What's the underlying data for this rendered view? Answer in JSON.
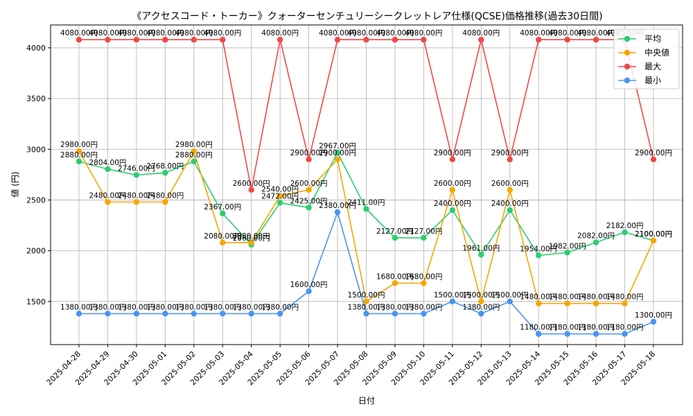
{
  "chart_data": {
    "type": "line",
    "title": "《アクセスコード・トーカー》クォーターセンチュリーシークレットレア仕様(QCSE)価格推移(過去30日間)",
    "xlabel": "日付",
    "ylabel": "値 (円)",
    "ylim": [
      1075,
      4225
    ],
    "yticks": [
      1500,
      2000,
      2500,
      3000,
      3500,
      4000
    ],
    "grid": true,
    "legend_position": "top-right",
    "label_suffix": "円",
    "categories": [
      "2025-04-28",
      "2025-04-29",
      "2025-04-30",
      "2025-05-01",
      "2025-05-02",
      "2025-05-03",
      "2025-05-04",
      "2025-05-05",
      "2025-05-06",
      "2025-05-07",
      "2025-05-08",
      "2025-05-09",
      "2025-05-10",
      "2025-05-11",
      "2025-05-12",
      "2025-05-13",
      "2025-05-14",
      "2025-05-15",
      "2025-05-16",
      "2025-05-17",
      "2025-05-18"
    ],
    "series": [
      {
        "name": "平均",
        "color": "#2ecc71",
        "values": [
          2880,
          2804,
          2746,
          2768,
          2880,
          2367,
          2060,
          2472,
          2425,
          2967,
          2411,
          2127,
          2127,
          2400,
          1961,
          2400,
          1954,
          1982,
          2082,
          2182,
          2100
        ]
      },
      {
        "name": "中央値",
        "color": "#f5a700",
        "values": [
          2980,
          2480,
          2480,
          2480,
          2980,
          2080,
          2080,
          2540,
          2600,
          2900,
          1500,
          1680,
          1680,
          2600,
          1500,
          2600,
          1480,
          1480,
          1480,
          1480,
          2100
        ]
      },
      {
        "name": "最大",
        "color": "#f04848",
        "values": [
          4080,
          4080,
          4080,
          4080,
          4080,
          4080,
          2600,
          4080,
          2900,
          4080,
          4080,
          4080,
          4080,
          2900,
          4080,
          2900,
          4080,
          4080,
          4080,
          4080,
          2900
        ]
      },
      {
        "name": "最小",
        "color": "#4a94f2",
        "values": [
          1380,
          1380,
          1380,
          1380,
          1380,
          1380,
          1380,
          1380,
          1600,
          2380,
          1380,
          1380,
          1380,
          1500,
          1380,
          1500,
          1180,
          1180,
          1180,
          1180,
          1300
        ]
      }
    ]
  }
}
